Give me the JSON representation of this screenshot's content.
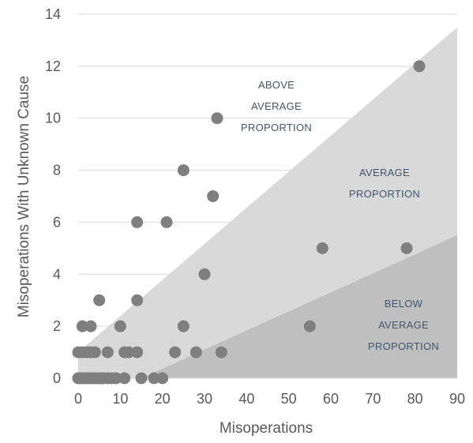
{
  "chart_data": {
    "type": "scatter",
    "title": "",
    "xlabel": "Misoperations",
    "ylabel": "Misoperations With Unknown Cause",
    "xlim": [
      0,
      90
    ],
    "ylim": [
      0,
      14
    ],
    "x_ticks": [
      "0",
      "10",
      "20",
      "30",
      "40",
      "50",
      "60",
      "70",
      "80",
      "90"
    ],
    "y_ticks": [
      "0",
      "2",
      "4",
      "6",
      "8",
      "10",
      "12",
      "14"
    ],
    "grid": "horizontal",
    "regions": [
      {
        "label_lines": [
          "ABOVE",
          "AVERAGE",
          "PROPORTION"
        ],
        "color": "#ffffff"
      },
      {
        "label_lines": [
          "AVERAGE",
          "PROPORTION"
        ],
        "color": "#d9d9d9",
        "lower_boundary": [
          [
            15,
            0
          ],
          [
            90,
            13.5
          ]
        ],
        "upper_boundary": [
          [
            0,
            0
          ],
          [
            0,
            1
          ],
          [
            90,
            13.5
          ]
        ]
      },
      {
        "label_lines": [
          "BELOW",
          "AVERAGE",
          "PROPORTION"
        ],
        "color": "#bfbfbf",
        "upper_boundary": [
          [
            15,
            0
          ],
          [
            90,
            5.5
          ]
        ]
      }
    ],
    "marker_color": "#7f7f7f",
    "points": [
      [
        0,
        0
      ],
      [
        0.5,
        0
      ],
      [
        1,
        0
      ],
      [
        1.5,
        0
      ],
      [
        2,
        0
      ],
      [
        2.5,
        0
      ],
      [
        3,
        0
      ],
      [
        3.5,
        0
      ],
      [
        4,
        0
      ],
      [
        4.5,
        0
      ],
      [
        5,
        0
      ],
      [
        5.5,
        0
      ],
      [
        6,
        0
      ],
      [
        7,
        0
      ],
      [
        8,
        0
      ],
      [
        9,
        0
      ],
      [
        0,
        1
      ],
      [
        1,
        1
      ],
      [
        2,
        1
      ],
      [
        3,
        1
      ],
      [
        4,
        1
      ],
      [
        1,
        2
      ],
      [
        3,
        2
      ],
      [
        5,
        3
      ],
      [
        7,
        1
      ],
      [
        10,
        2
      ],
      [
        11,
        1
      ],
      [
        12,
        1
      ],
      [
        11,
        0
      ],
      [
        14,
        6
      ],
      [
        14,
        3
      ],
      [
        14,
        1
      ],
      [
        15,
        0
      ],
      [
        18,
        0
      ],
      [
        20,
        0
      ],
      [
        21,
        6
      ],
      [
        23,
        1
      ],
      [
        25,
        8
      ],
      [
        25,
        2
      ],
      [
        28,
        1
      ],
      [
        30,
        4
      ],
      [
        32,
        7
      ],
      [
        33,
        10
      ],
      [
        34,
        1
      ],
      [
        55,
        2
      ],
      [
        58,
        5
      ],
      [
        78,
        5
      ],
      [
        81,
        12
      ]
    ]
  }
}
